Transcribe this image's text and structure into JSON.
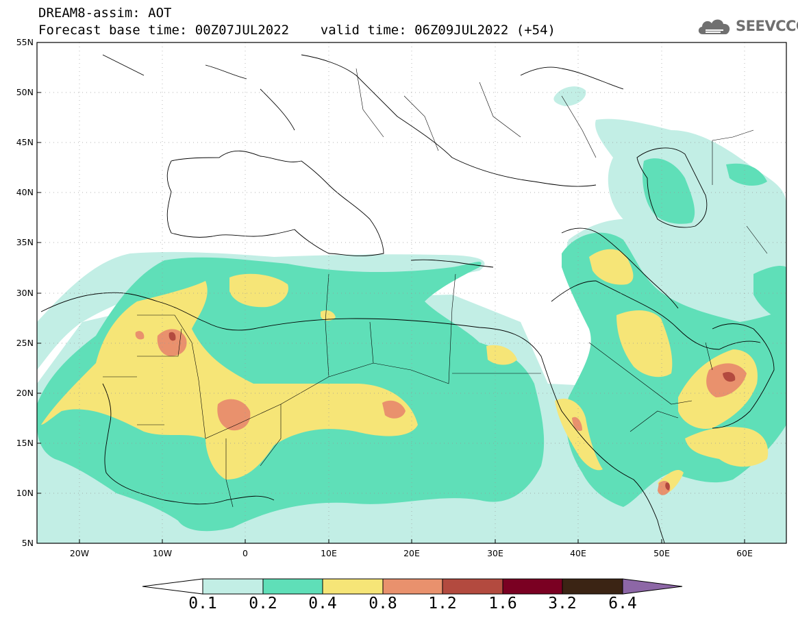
{
  "title": {
    "line1": "DREAM8-assim: AOT",
    "line2": "Forecast base time: 00Z07JUL2022    valid time: 06Z09JUL2022 (+54)"
  },
  "logo": {
    "text": "SEEVCCC",
    "icon": "cloud-icon"
  },
  "map": {
    "lat_labels": [
      "55N",
      "50N",
      "45N",
      "40N",
      "35N",
      "30N",
      "25N",
      "20N",
      "15N",
      "10N",
      "5N"
    ],
    "lon_labels": [
      "20W",
      "10W",
      "0",
      "10E",
      "20E",
      "30E",
      "40E",
      "50E",
      "60E"
    ],
    "lat_range": [
      5,
      55
    ],
    "lon_range": [
      -25,
      65
    ],
    "grid": true
  },
  "colorbar": {
    "labels": [
      "0.1",
      "0.2",
      "0.4",
      "0.8",
      "1.2",
      "1.6",
      "3.2",
      "6.4"
    ],
    "colors": [
      "#ffffff",
      "#c2eee5",
      "#5fdfb8",
      "#f6e577",
      "#e9916d",
      "#b34a3f",
      "#7a0022",
      "#3b2414",
      "#8d67a6"
    ]
  }
}
